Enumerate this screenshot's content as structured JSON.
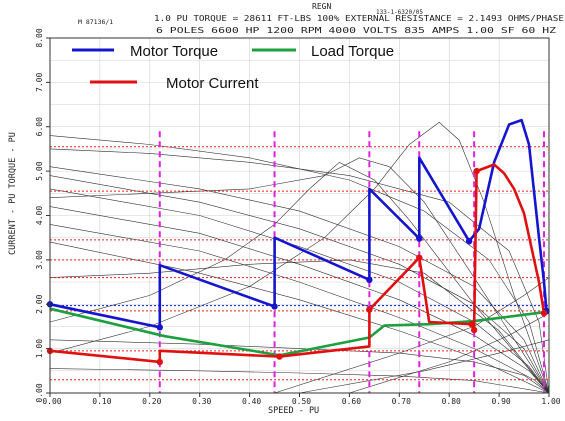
{
  "header": {
    "rev": "REGN",
    "line1": "1.0 PU TORQUE = 28611 FT-LBS  100% EXTERNAL RESISTANCE = 2.1493 OHMS/PHASE",
    "code": "133-1-6320/05",
    "line2_left": "M  87136/1",
    "line2": "6  POLES  6600 HP  1200 RPM  4000 VOLTS  835 AMPS  1.00 SF  60 HZ"
  },
  "legend": {
    "motor_torque": "Motor Torque",
    "load_torque": "Load Torque",
    "motor_current": "Motor Current"
  },
  "colors": {
    "motor_torque": "#1515d0",
    "load_torque": "#1fa040",
    "motor_current": "#e01010",
    "step_marker": "#e020e0",
    "red_grid": "#e02020",
    "blue_ref": "#2030d0",
    "background_curves": "#303030"
  },
  "chart_data": {
    "type": "line",
    "title": "",
    "xlabel": "SPEED - PU",
    "ylabel": "CURRENT - PU    TORQUE - PU",
    "xlim": [
      0,
      1.0
    ],
    "ylim": [
      0,
      8.0
    ],
    "x_ticks": [
      "0.00",
      "0.10",
      "0.20",
      "0.30",
      "0.40",
      "0.50",
      "0.60",
      "0.70",
      "0.80",
      "0.90",
      "1.00"
    ],
    "x_tick_values": [
      0,
      0.1,
      0.2,
      0.3,
      0.4,
      0.5,
      0.6,
      0.7,
      0.8,
      0.9,
      1.0
    ],
    "y_ticks": [
      "0.00",
      "1.00",
      "2.00",
      "3.00",
      "4.00",
      "5.00",
      "6.00",
      "7.00",
      "8.00"
    ],
    "y_tick_values": [
      0,
      1,
      2,
      3,
      4,
      5,
      6,
      7,
      8
    ],
    "series": [
      {
        "name": "Motor Torque",
        "color": "#1515d0",
        "x": [
          0.0,
          0.22,
          0.22,
          0.45,
          0.45,
          0.64,
          0.64,
          0.74,
          0.74,
          0.84,
          0.86,
          0.89,
          0.92,
          0.945,
          0.96,
          0.98,
          0.99,
          0.995
        ],
        "y": [
          2.0,
          1.48,
          2.88,
          1.95,
          3.5,
          2.55,
          4.6,
          3.48,
          5.3,
          3.42,
          3.7,
          5.2,
          6.05,
          6.15,
          5.6,
          3.5,
          2.5,
          1.85
        ]
      },
      {
        "name": "Load Torque",
        "color": "#1fa040",
        "x": [
          0.0,
          0.23,
          0.46,
          0.64,
          0.67,
          0.76,
          0.85,
          0.99
        ],
        "y": [
          1.9,
          1.28,
          0.85,
          1.25,
          1.52,
          1.55,
          1.62,
          1.82
        ]
      },
      {
        "name": "Motor Current",
        "color": "#e01010",
        "x": [
          0.0,
          0.22,
          0.22,
          0.46,
          0.64,
          0.64,
          0.74,
          0.76,
          0.845,
          0.85,
          0.855,
          0.89,
          0.91,
          0.93,
          0.95,
          0.98,
          0.99
        ],
        "y": [
          0.95,
          0.7,
          0.95,
          0.82,
          1.05,
          1.88,
          3.05,
          1.6,
          1.55,
          1.42,
          5.0,
          5.15,
          4.95,
          4.6,
          4.05,
          2.5,
          1.8
        ]
      }
    ],
    "step_speeds": [
      0.22,
      0.45,
      0.64,
      0.74,
      0.85,
      0.99
    ],
    "red_dotted_levels": [
      0.3,
      0.95,
      1.85,
      2.6,
      3.0,
      3.45,
      4.55,
      5.55
    ],
    "blue_dotted_level": 1.97
  }
}
